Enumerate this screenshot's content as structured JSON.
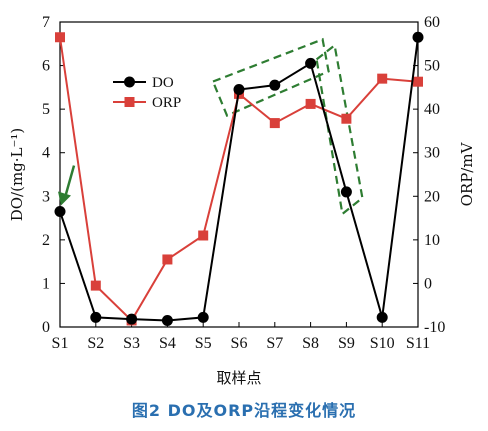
{
  "chart_data": {
    "type": "line",
    "x": [
      "S1",
      "S2",
      "S3",
      "S4",
      "S5",
      "S6",
      "S7",
      "S8",
      "S9",
      "S10",
      "S11"
    ],
    "xlabel": "取样点",
    "ylabel_left": "DO/(mg·L⁻¹)",
    "ylabel_right": "ORP/mV",
    "ylim_left": [
      0,
      7
    ],
    "ylim_right": [
      -10,
      60
    ],
    "yticks_left": [
      0,
      1,
      2,
      3,
      4,
      5,
      6,
      7
    ],
    "yticks_right": [
      -10,
      0,
      10,
      20,
      30,
      40,
      50,
      60
    ],
    "legend_position": "upper-left",
    "series": [
      {
        "name": "DO",
        "axis": "left",
        "color": "#000000",
        "marker": "circle",
        "values": [
          2.65,
          0.22,
          0.18,
          0.15,
          0.22,
          5.45,
          5.55,
          6.05,
          3.1,
          0.22,
          6.65
        ]
      },
      {
        "name": "ORP",
        "axis": "right",
        "color": "#d9403a",
        "marker": "square",
        "values": [
          56.5,
          -0.5,
          -8.5,
          5.5,
          11,
          43.5,
          36.8,
          41.2,
          37.8,
          47,
          46.3
        ]
      }
    ],
    "annotations": [
      {
        "type": "arrow",
        "color": "#2e7d32",
        "target_x": "S1",
        "target_y": 2.65
      },
      {
        "type": "dashed-box",
        "color": "#2e7d32",
        "around": [
          "S6",
          "S7",
          "S8"
        ]
      },
      {
        "type": "dashed-box",
        "color": "#2e7d32",
        "around": [
          "S8",
          "S9"
        ]
      }
    ]
  },
  "caption": "图2   DO及ORP沿程变化情况"
}
